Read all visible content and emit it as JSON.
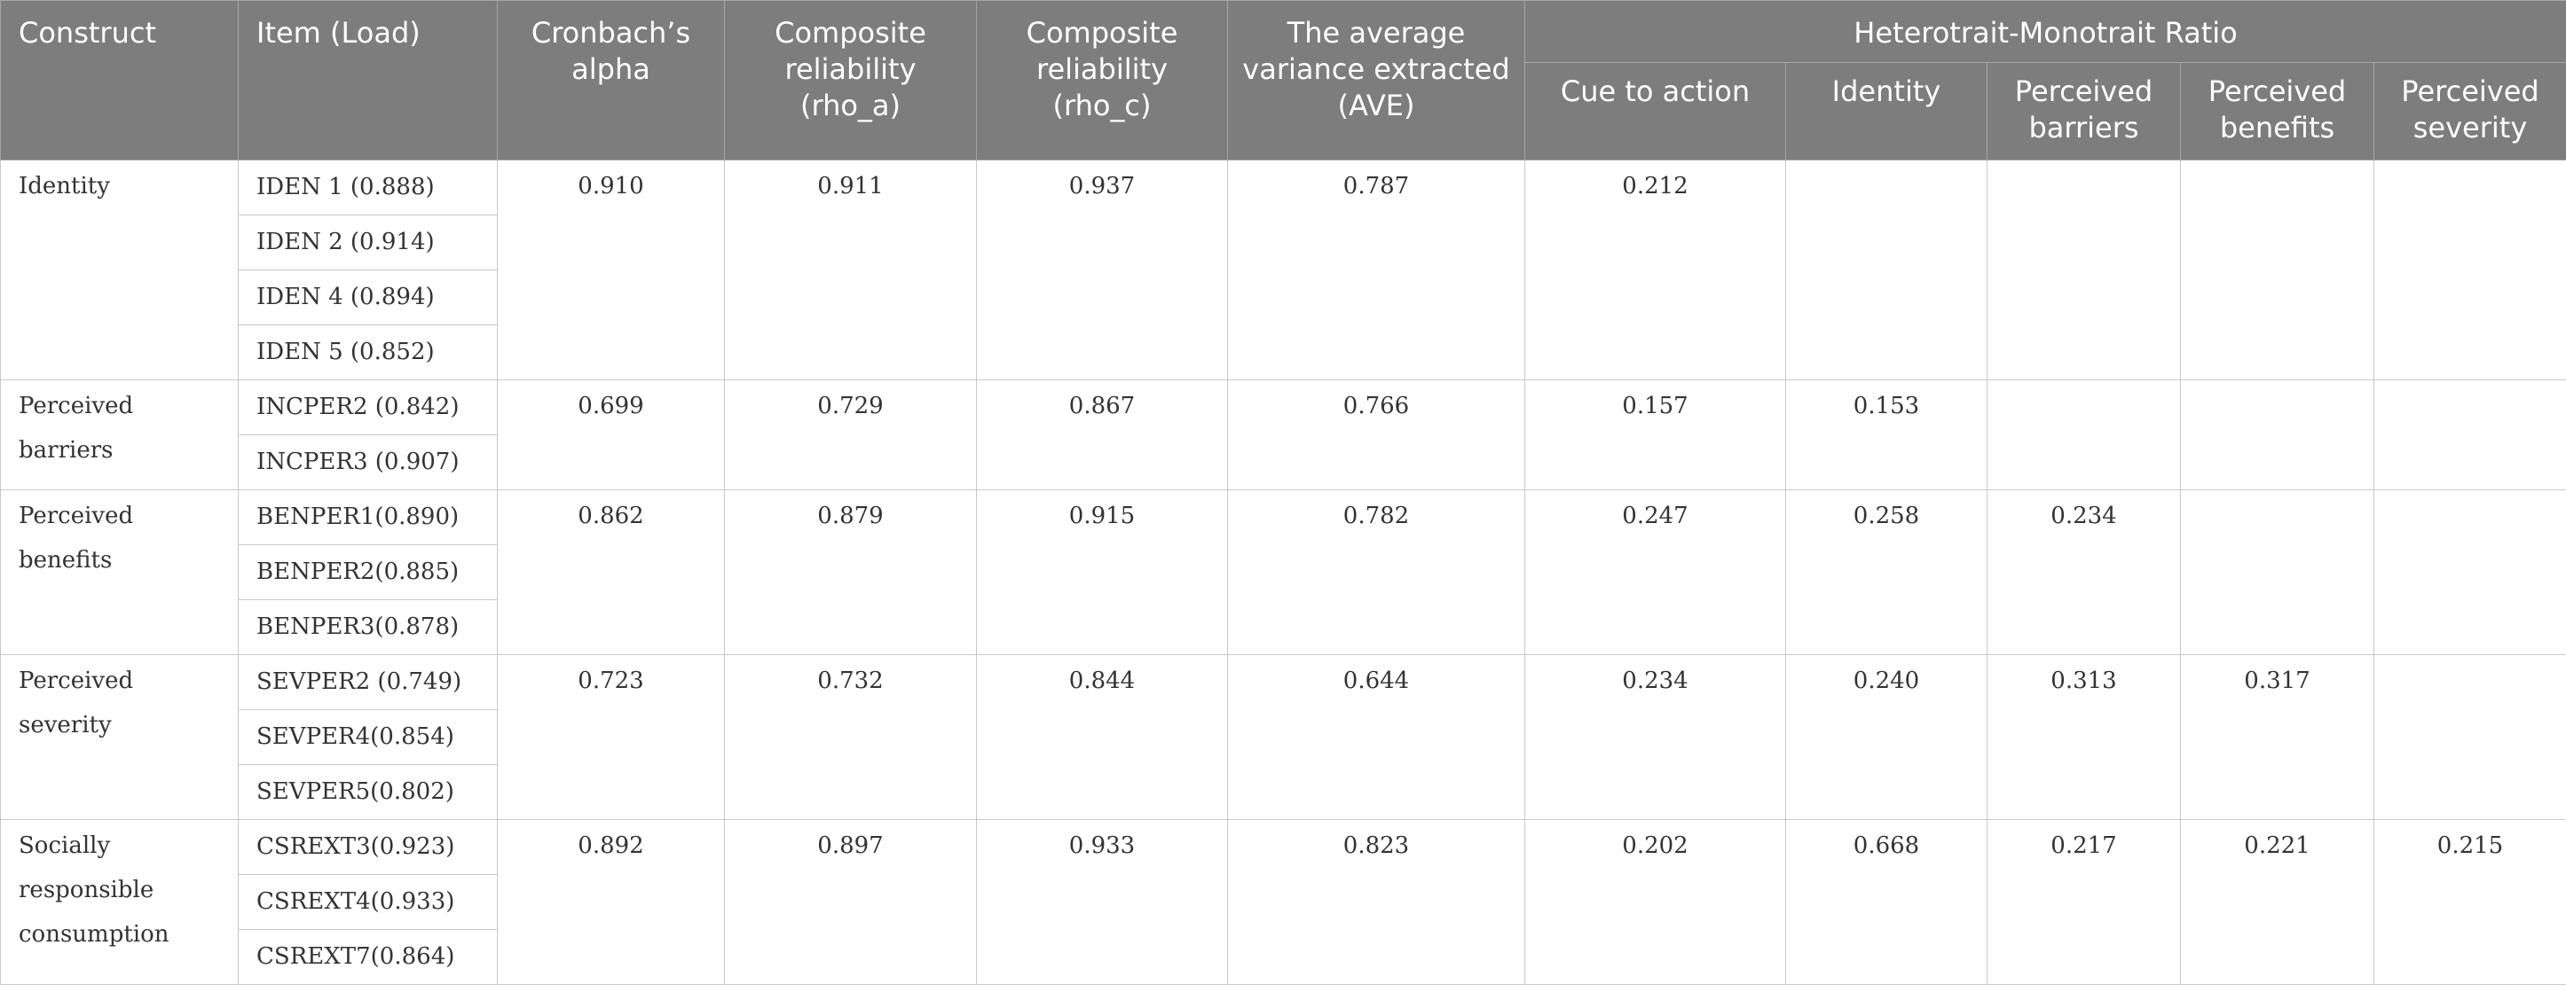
{
  "headers": {
    "construct": "Construct",
    "item": "Item (Load)",
    "alpha": "Cronbach’s alpha",
    "rho_a": "Composite reliability (rho_a)",
    "rho_c": "Composite reliability (rho_c)",
    "ave": "The average variance extracted (AVE)",
    "htmt": "Heterotrait-Monotrait Ratio",
    "htmt_cols": [
      "Cue to action",
      "Identity",
      "Perceived barriers",
      "Perceived benefits",
      "Perceived severity"
    ]
  },
  "rows": [
    {
      "construct": "Identity",
      "items": [
        "IDEN 1 (0.888)",
        "IDEN 2 (0.914)",
        "IDEN 4 (0.894)",
        "IDEN 5 (0.852)"
      ],
      "alpha": "0.910",
      "rho_a": "0.911",
      "rho_c": "0.937",
      "ave": "0.787",
      "htmt": [
        "0.212",
        "",
        "",
        "",
        ""
      ]
    },
    {
      "construct": "Perceived barriers",
      "items": [
        "INCPER2 (0.842)",
        "INCPER3 (0.907)"
      ],
      "alpha": "0.699",
      "rho_a": "0.729",
      "rho_c": "0.867",
      "ave": "0.766",
      "htmt": [
        "0.157",
        "0.153",
        "",
        "",
        ""
      ]
    },
    {
      "construct": "Perceived benefits",
      "items": [
        "BENPER1(0.890)",
        "BENPER2(0.885)",
        "BENPER3(0.878)"
      ],
      "alpha": "0.862",
      "rho_a": "0.879",
      "rho_c": "0.915",
      "ave": "0.782",
      "htmt": [
        "0.247",
        "0.258",
        "0.234",
        "",
        ""
      ]
    },
    {
      "construct": "Perceived severity",
      "items": [
        "SEVPER2 (0.749)",
        "SEVPER4(0.854)",
        "SEVPER5(0.802)"
      ],
      "alpha": "0.723",
      "rho_a": "0.732",
      "rho_c": "0.844",
      "ave": "0.644",
      "htmt": [
        "0.234",
        "0.240",
        "0.313",
        "0.317",
        ""
      ]
    },
    {
      "construct": "Socially responsible consumption",
      "items": [
        "CSREXT3(0.923)",
        "CSREXT4(0.933)",
        "CSREXT7(0.864)"
      ],
      "alpha": "0.892",
      "rho_a": "0.897",
      "rho_c": "0.933",
      "ave": "0.823",
      "htmt": [
        "0.202",
        "0.668",
        "0.217",
        "0.221",
        "0.215"
      ]
    }
  ]
}
